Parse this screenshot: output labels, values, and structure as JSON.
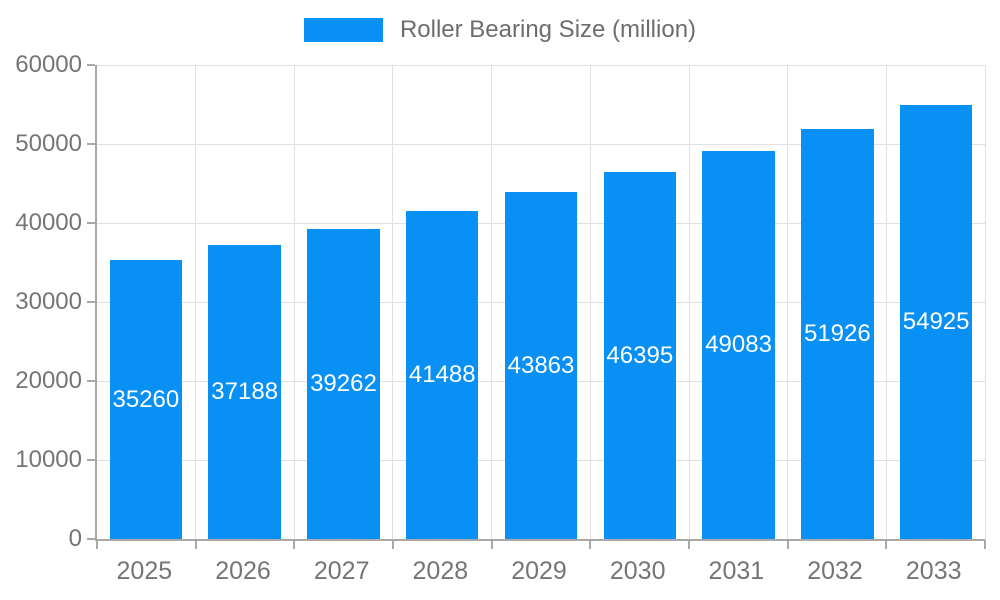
{
  "chart_data": {
    "type": "bar",
    "title": "Roller Bearing Size (million)",
    "legend": [
      "Roller Bearing Size (million)"
    ],
    "legend_position": "top",
    "categories": [
      "2025",
      "2026",
      "2027",
      "2028",
      "2029",
      "2030",
      "2031",
      "2032",
      "2033"
    ],
    "series": [
      {
        "name": "Roller Bearing Size (million)",
        "values": [
          35260,
          37188,
          39262,
          41488,
          43863,
          46395,
          49083,
          51926,
          54925
        ]
      }
    ],
    "xlabel": "",
    "ylabel": "",
    "ylim": [
      0,
      60000
    ],
    "yticks": [
      0,
      10000,
      20000,
      30000,
      40000,
      50000,
      60000
    ],
    "grid": true,
    "value_labels_inside_bars": true,
    "colors": {
      "bar": "#0890F5",
      "value_label": "#ffffff",
      "axis": "#a8a8a8",
      "gridline": "#e0e0e0",
      "tick_label": "#757575",
      "legend_text": "#6d6d6d"
    }
  }
}
